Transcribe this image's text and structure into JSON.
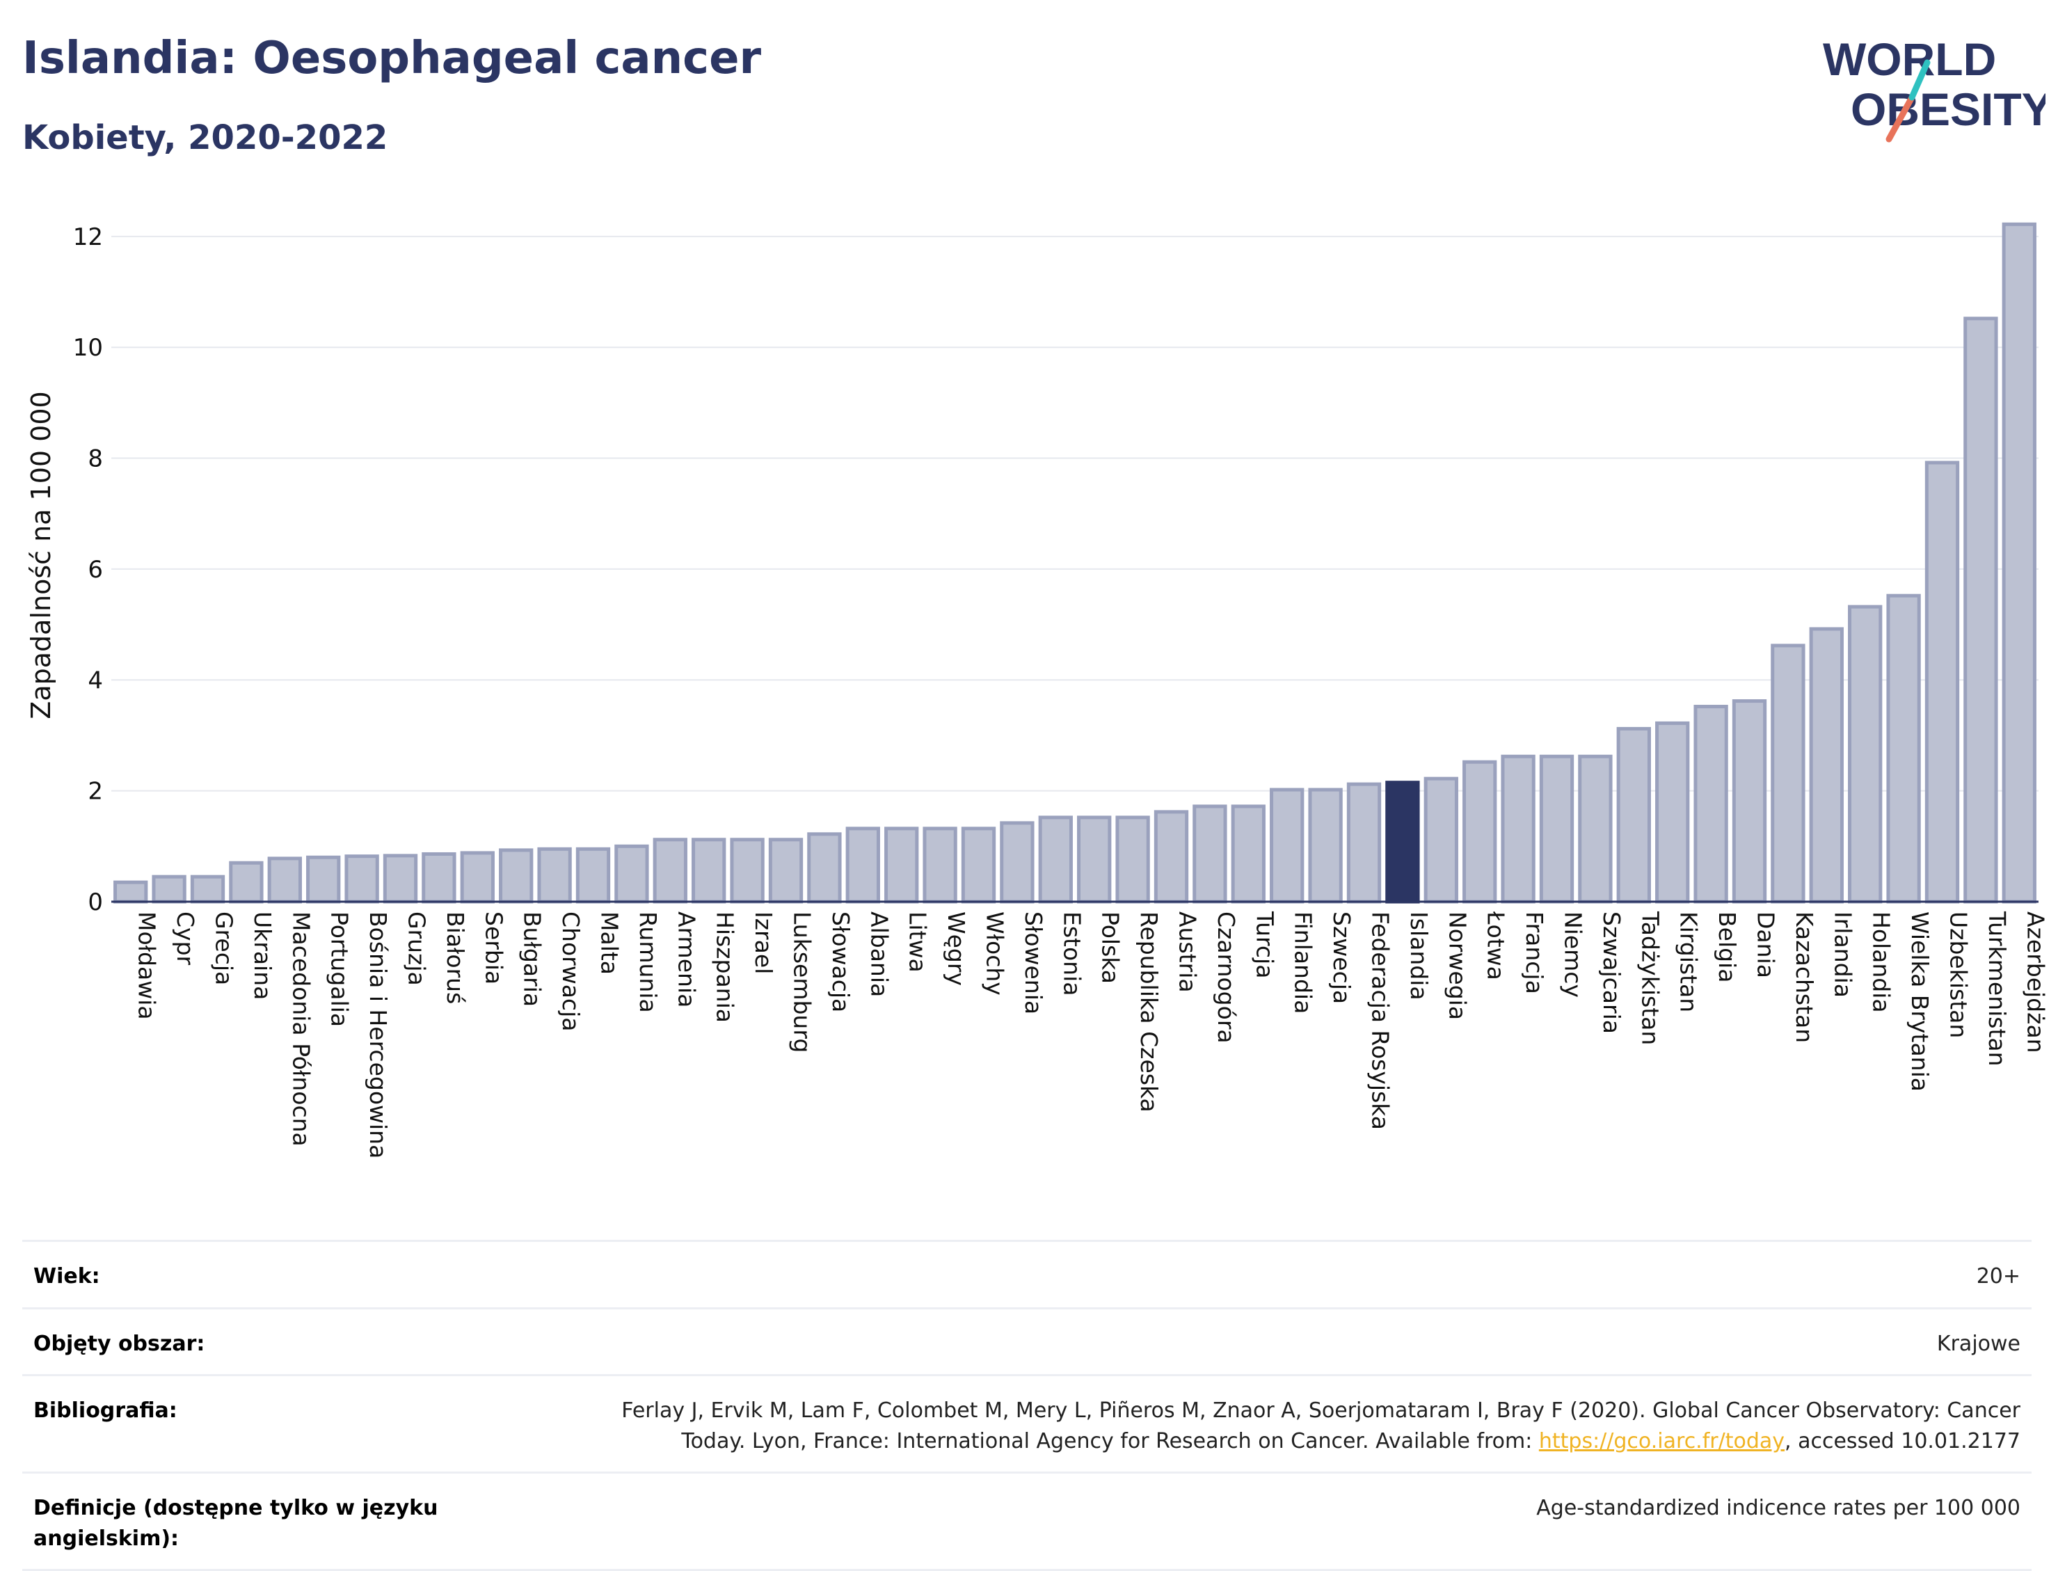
{
  "title": "Islandia: Oesophageal cancer",
  "subtitle": "Kobiety, 2020-2022",
  "logo": {
    "line1": "WORLD",
    "line2": "OBESITY",
    "icon": "world-obesity-logo"
  },
  "colors": {
    "bar": "#bcc1d2",
    "bar_border": "#9aa1bd",
    "highlight": "#2b3563",
    "title": "#2b3563",
    "grid": "#e6e8ee",
    "link": "#f0b323"
  },
  "chart_data": {
    "type": "bar",
    "ylabel": "Zapadalność na 100 000",
    "xlabel": "",
    "ylim": [
      0,
      12.5
    ],
    "yticks": [
      0,
      2,
      4,
      6,
      8,
      10,
      12
    ],
    "grid": true,
    "highlight": "Islandia",
    "categories": [
      "Mołdawia",
      "Cypr",
      "Grecja",
      "Ukraina",
      "Macedonia Północna",
      "Portugalia",
      "Bośnia i Hercegowina",
      "Gruzja",
      "Białoruś",
      "Serbia",
      "Bułgaria",
      "Chorwacja",
      "Malta",
      "Rumunia",
      "Armenia",
      "Hiszpania",
      "Izrael",
      "Luksemburg",
      "Słowacja",
      "Albania",
      "Litwa",
      "Węgry",
      "Włochy",
      "Słowenia",
      "Estonia",
      "Polska",
      "Republika Czeska",
      "Austria",
      "Czarnogóra",
      "Turcja",
      "Finlandia",
      "Szwecja",
      "Federacja Rosyjska",
      "Islandia",
      "Norwegia",
      "Łotwa",
      "Francja",
      "Niemcy",
      "Szwajcaria",
      "Tadżykistan",
      "Kirgistan",
      "Belgia",
      "Dania",
      "Kazachstan",
      "Irlandia",
      "Holandia",
      "Wielka Brytania",
      "Uzbekistan",
      "Turkmenistan",
      "Azerbejdżan"
    ],
    "values": [
      0.35,
      0.45,
      0.45,
      0.7,
      0.78,
      0.8,
      0.82,
      0.83,
      0.86,
      0.88,
      0.93,
      0.95,
      0.95,
      1.0,
      1.12,
      1.12,
      1.12,
      1.12,
      1.22,
      1.32,
      1.32,
      1.32,
      1.32,
      1.42,
      1.52,
      1.52,
      1.52,
      1.62,
      1.72,
      1.72,
      2.02,
      2.02,
      2.12,
      2.15,
      2.22,
      2.52,
      2.62,
      2.62,
      2.62,
      3.12,
      3.22,
      3.52,
      3.62,
      4.62,
      4.92,
      5.32,
      5.52,
      7.92,
      10.52,
      12.22
    ]
  },
  "info": {
    "rows": [
      {
        "label": "Wiek:",
        "value": "20+"
      },
      {
        "label": "Objęty obszar:",
        "value": "Krajowe"
      },
      {
        "label": "Bibliografia:",
        "value_line1": "Ferlay J, Ervik M, Lam F, Colombet M, Mery L, Piñeros M, Znaor A, Soerjomataram I, Bray F (2020). Global Cancer Observatory: Cancer",
        "value_line2_pre": "Today. Lyon, France: International Agency for Research on Cancer. Available from: ",
        "link": "https://gco.iarc.fr/today",
        "value_line2_post": ", accessed 10.01.2177"
      },
      {
        "label": "Definicje (dostępne tylko w języku angielskim):",
        "value": "Age-standardized indicence rates per 100 000"
      }
    ]
  }
}
